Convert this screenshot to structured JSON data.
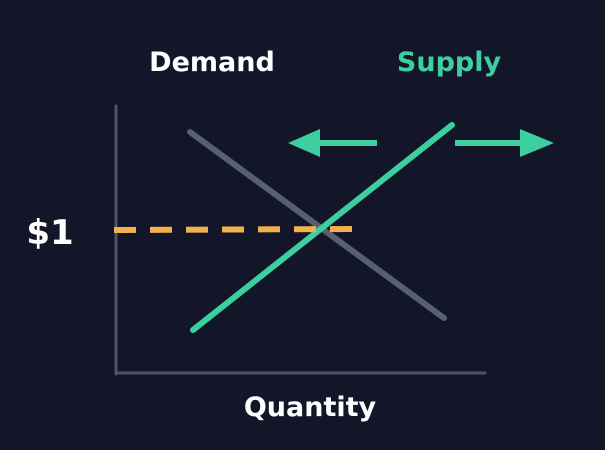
{
  "labels": {
    "demand": "Demand",
    "supply": "Supply",
    "price": "$1",
    "x_axis": "Quantity"
  },
  "colors": {
    "background": "#121628",
    "demand_line": "#56616f",
    "supply_line": "#3ecfa1",
    "price_line": "#f2b04f",
    "axis": "#4c5566",
    "text_white": "#ffffff",
    "text_supply": "#3ecfa1"
  },
  "icons": {
    "left_arrow": "arrow-left-icon",
    "right_arrow": "arrow-right-icon"
  }
}
